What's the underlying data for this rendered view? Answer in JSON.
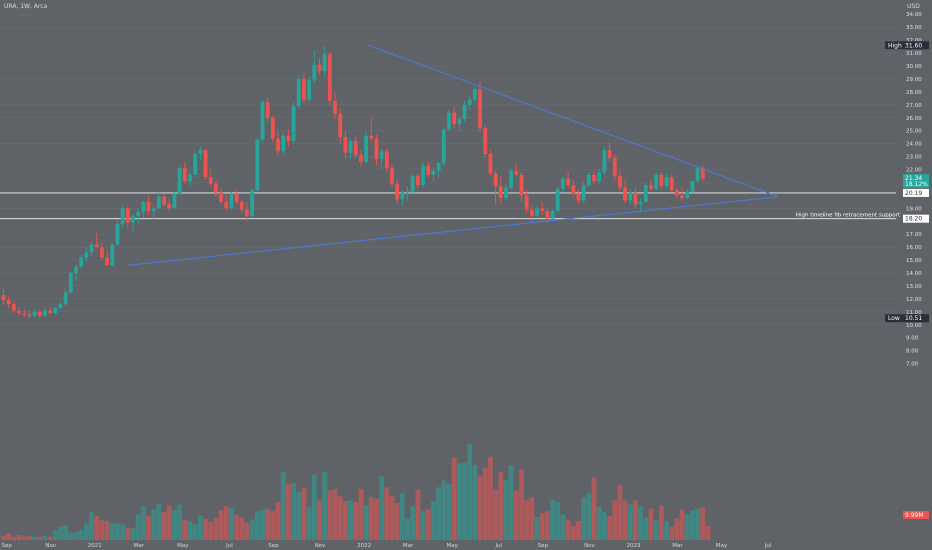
{
  "header": {
    "symbol_line": "URA, 1W, Arca",
    "currency": "USD"
  },
  "chart_data": {
    "type": "candlestick",
    "symbol": "URA",
    "timeframe": "1W",
    "exchange": "Arca",
    "currency": "USD",
    "y_axis_ticks": [
      "34.00",
      "33.00",
      "32.00",
      "31.00",
      "30.00",
      "29.00",
      "28.00",
      "27.00",
      "26.00",
      "25.00",
      "24.00",
      "23.00",
      "22.00",
      "21.00",
      "19.00",
      "17.00",
      "16.00",
      "15.00",
      "14.00",
      "13.00",
      "12.00",
      "11.00",
      "10.00",
      "9.00",
      "8.00",
      "7.00"
    ],
    "x_axis_ticks": [
      "Sep",
      "Nov",
      "2021",
      "Mar",
      "May",
      "Jul",
      "Sep",
      "Nov",
      "2022",
      "Mar",
      "May",
      "Jul",
      "Sep",
      "Nov",
      "2023",
      "Mar",
      "May",
      "Jul"
    ],
    "ylim": [
      6.6,
      35.1
    ],
    "price_labels": [
      {
        "label": "High",
        "value": "31.60"
      },
      {
        "label": "",
        "value": "21.34",
        "sub": "18.12%"
      },
      {
        "label": "",
        "value": "20.19"
      },
      {
        "label": "",
        "value": "18.20"
      },
      {
        "label": "Low",
        "value": "10.51"
      },
      {
        "label": "",
        "value": "9.99M"
      }
    ],
    "horizontal_lines": [
      {
        "value": 20.19,
        "label": ""
      },
      {
        "value": 18.2,
        "label": "High timeline fib retracement support"
      }
    ],
    "trendlines": [
      {
        "name": "upper",
        "from": [
          "2021-11",
          31.6
        ],
        "to": [
          "2023-03",
          19.9
        ]
      },
      {
        "name": "lower",
        "from": [
          "2021-02",
          14.6
        ],
        "to": [
          "2023-03",
          19.9
        ]
      }
    ],
    "candles": [
      [
        12.3,
        12.8,
        11.6,
        11.9
      ],
      [
        11.9,
        12.2,
        11.3,
        11.6
      ],
      [
        11.6,
        11.8,
        10.9,
        11.1
      ],
      [
        11.1,
        11.4,
        10.7,
        10.9
      ],
      [
        10.9,
        11.2,
        10.6,
        10.8
      ],
      [
        10.8,
        11.1,
        10.5,
        10.7
      ],
      [
        10.7,
        11.2,
        10.5,
        11.0
      ],
      [
        11.0,
        11.2,
        10.5,
        10.7
      ],
      [
        10.7,
        11.3,
        10.6,
        11.1
      ],
      [
        11.1,
        11.4,
        10.8,
        10.9
      ],
      [
        10.9,
        11.4,
        10.8,
        11.3
      ],
      [
        11.3,
        11.8,
        11.1,
        11.6
      ],
      [
        11.6,
        12.7,
        11.5,
        12.5
      ],
      [
        12.5,
        14.1,
        12.4,
        14.0
      ],
      [
        14.0,
        14.7,
        13.4,
        14.5
      ],
      [
        14.5,
        15.4,
        14.3,
        15.2
      ],
      [
        15.2,
        16.0,
        14.9,
        15.6
      ],
      [
        15.6,
        16.4,
        15.3,
        16.2
      ],
      [
        16.2,
        17.1,
        15.9,
        16.0
      ],
      [
        16.0,
        16.4,
        15.0,
        15.2
      ],
      [
        15.2,
        15.8,
        14.8,
        14.6
      ],
      [
        14.6,
        16.3,
        14.5,
        16.2
      ],
      [
        16.2,
        18.0,
        16.1,
        17.8
      ],
      [
        17.8,
        19.3,
        17.5,
        19.0
      ],
      [
        19.0,
        19.2,
        17.5,
        17.9
      ],
      [
        17.9,
        18.6,
        17.2,
        18.4
      ],
      [
        18.4,
        19.0,
        17.8,
        18.7
      ],
      [
        18.7,
        19.6,
        18.3,
        19.5
      ],
      [
        19.5,
        20.0,
        18.5,
        18.8
      ],
      [
        18.8,
        19.2,
        18.2,
        19.0
      ],
      [
        19.0,
        20.2,
        18.9,
        19.9
      ],
      [
        19.9,
        20.1,
        19.1,
        19.3
      ],
      [
        19.3,
        19.7,
        18.8,
        19.0
      ],
      [
        19.0,
        20.3,
        18.9,
        20.1
      ],
      [
        20.1,
        22.3,
        20.0,
        22.1
      ],
      [
        22.1,
        22.6,
        20.9,
        21.1
      ],
      [
        21.1,
        21.8,
        20.7,
        21.6
      ],
      [
        21.6,
        23.4,
        21.4,
        23.2
      ],
      [
        23.2,
        23.8,
        22.7,
        23.5
      ],
      [
        23.5,
        23.6,
        21.2,
        21.4
      ],
      [
        21.4,
        22.0,
        20.7,
        20.9
      ],
      [
        20.9,
        21.2,
        19.9,
        20.2
      ],
      [
        20.2,
        20.6,
        19.3,
        19.5
      ],
      [
        19.5,
        20.0,
        18.8,
        19.0
      ],
      [
        19.0,
        20.3,
        18.9,
        20.1
      ],
      [
        20.1,
        20.4,
        19.3,
        19.5
      ],
      [
        19.5,
        19.7,
        18.6,
        18.9
      ],
      [
        18.9,
        19.5,
        18.0,
        18.4
      ],
      [
        18.4,
        20.5,
        18.3,
        20.4
      ],
      [
        20.4,
        24.5,
        20.3,
        24.3
      ],
      [
        24.3,
        27.4,
        24.1,
        27.2
      ],
      [
        27.2,
        27.6,
        25.7,
        26.0
      ],
      [
        26.0,
        26.2,
        24.1,
        24.4
      ],
      [
        24.4,
        25.0,
        23.1,
        23.4
      ],
      [
        23.4,
        24.8,
        23.2,
        24.6
      ],
      [
        24.6,
        25.1,
        23.8,
        24.2
      ],
      [
        24.2,
        27.2,
        24.0,
        26.9
      ],
      [
        26.9,
        29.3,
        26.7,
        29.0
      ],
      [
        29.0,
        29.5,
        27.1,
        27.4
      ],
      [
        27.4,
        29.2,
        27.2,
        28.9
      ],
      [
        28.9,
        31.2,
        28.7,
        30.1
      ],
      [
        30.1,
        30.6,
        29.3,
        29.6
      ],
      [
        29.6,
        31.6,
        29.2,
        30.9
      ],
      [
        30.9,
        31.1,
        27.0,
        27.3
      ],
      [
        27.3,
        28.0,
        25.9,
        26.3
      ],
      [
        26.3,
        26.7,
        24.0,
        24.5
      ],
      [
        24.5,
        25.0,
        22.8,
        23.3
      ],
      [
        23.3,
        24.4,
        22.8,
        24.2
      ],
      [
        24.2,
        24.6,
        22.9,
        23.1
      ],
      [
        23.1,
        23.5,
        22.2,
        22.6
      ],
      [
        22.6,
        24.9,
        22.4,
        24.6
      ],
      [
        24.6,
        26.0,
        24.2,
        24.4
      ],
      [
        24.4,
        24.7,
        22.3,
        22.8
      ],
      [
        22.8,
        23.6,
        22.0,
        23.4
      ],
      [
        23.4,
        23.6,
        21.8,
        22.1
      ],
      [
        22.1,
        22.4,
        20.6,
        20.9
      ],
      [
        20.9,
        21.3,
        19.4,
        19.7
      ],
      [
        19.7,
        20.4,
        19.2,
        20.2
      ],
      [
        20.2,
        20.7,
        19.6,
        20.3
      ],
      [
        20.3,
        21.7,
        20.2,
        21.5
      ],
      [
        21.5,
        21.7,
        20.5,
        20.8
      ],
      [
        20.8,
        22.6,
        20.6,
        22.3
      ],
      [
        22.3,
        22.6,
        21.4,
        21.6
      ],
      [
        21.6,
        22.2,
        21.1,
        21.9
      ],
      [
        21.9,
        22.6,
        21.4,
        22.5
      ],
      [
        22.5,
        25.3,
        22.3,
        25.1
      ],
      [
        25.1,
        26.6,
        24.9,
        26.4
      ],
      [
        26.4,
        26.8,
        25.2,
        25.5
      ],
      [
        25.5,
        26.1,
        25.0,
        25.9
      ],
      [
        25.9,
        27.3,
        25.7,
        27.0
      ],
      [
        27.0,
        27.7,
        26.6,
        27.4
      ],
      [
        27.4,
        28.4,
        27.1,
        28.2
      ],
      [
        28.2,
        28.8,
        24.9,
        25.2
      ],
      [
        25.2,
        25.4,
        22.9,
        23.2
      ],
      [
        23.2,
        23.5,
        21.5,
        21.7
      ],
      [
        21.7,
        21.9,
        19.3,
        20.7
      ],
      [
        20.7,
        21.5,
        19.4,
        19.8
      ],
      [
        19.8,
        20.9,
        19.6,
        20.6
      ],
      [
        20.6,
        22.1,
        20.4,
        21.9
      ],
      [
        21.9,
        22.4,
        21.5,
        21.6
      ],
      [
        21.6,
        21.8,
        19.5,
        20.0
      ],
      [
        20.0,
        20.4,
        18.6,
        18.9
      ],
      [
        18.9,
        19.2,
        17.9,
        18.4
      ],
      [
        18.4,
        19.2,
        18.2,
        19.0
      ],
      [
        19.0,
        19.5,
        18.5,
        18.8
      ],
      [
        18.8,
        19.1,
        17.9,
        18.2
      ],
      [
        18.2,
        18.9,
        18.1,
        18.8
      ],
      [
        18.8,
        20.7,
        18.7,
        20.5
      ],
      [
        20.5,
        21.5,
        20.2,
        21.3
      ],
      [
        21.3,
        21.8,
        20.5,
        20.8
      ],
      [
        20.8,
        21.2,
        19.8,
        20.1
      ],
      [
        20.1,
        20.5,
        19.3,
        19.6
      ],
      [
        19.6,
        21.0,
        19.4,
        20.8
      ],
      [
        20.8,
        21.8,
        20.6,
        21.6
      ],
      [
        21.6,
        21.9,
        20.8,
        21.1
      ],
      [
        21.1,
        22.0,
        20.9,
        21.8
      ],
      [
        21.8,
        23.7,
        21.6,
        23.5
      ],
      [
        23.5,
        24.1,
        22.6,
        22.9
      ],
      [
        22.9,
        23.2,
        21.2,
        21.5
      ],
      [
        21.5,
        21.9,
        20.3,
        20.6
      ],
      [
        20.6,
        21.2,
        19.4,
        19.6
      ],
      [
        19.6,
        20.5,
        19.3,
        20.2
      ],
      [
        20.2,
        20.6,
        19.0,
        19.3
      ],
      [
        19.3,
        19.8,
        18.7,
        19.5
      ],
      [
        19.5,
        21.0,
        19.4,
        20.8
      ],
      [
        20.8,
        21.3,
        20.3,
        20.5
      ],
      [
        20.5,
        21.8,
        20.4,
        21.6
      ],
      [
        21.6,
        21.8,
        20.4,
        20.7
      ],
      [
        20.7,
        21.7,
        20.5,
        21.4
      ],
      [
        21.4,
        21.6,
        20.2,
        20.4
      ],
      [
        20.4,
        20.6,
        19.8,
        20.0
      ],
      [
        20.0,
        20.6,
        19.6,
        19.8
      ],
      [
        19.8,
        20.5,
        19.7,
        20.3
      ],
      [
        20.3,
        21.2,
        20.2,
        21.1
      ],
      [
        21.1,
        22.3,
        21.0,
        22.1
      ],
      [
        22.1,
        22.3,
        21.1,
        21.3
      ]
    ],
    "volume_scale_max": 17,
    "volume": [
      0.5,
      0.8,
      0.4,
      0.6,
      0.4,
      0.5,
      0.4,
      0.4,
      0.5,
      0.4,
      1.2,
      1.6,
      1.8,
      0.9,
      0.9,
      1.2,
      2.0,
      3.4,
      2.9,
      2.4,
      2.3,
      2.0,
      2.0,
      1.9,
      1.5,
      1.4,
      3.1,
      4.1,
      2.9,
      3.7,
      4.4,
      3.4,
      4.2,
      3.6,
      4.3,
      2.5,
      2.3,
      1.9,
      3.0,
      2.6,
      2.2,
      2.7,
      3.6,
      4.1,
      3.9,
      3.0,
      2.7,
      2.1,
      2.5,
      3.5,
      3.7,
      3.8,
      3.5,
      4.6,
      8.3,
      6.8,
      6.9,
      5.8,
      6.3,
      4.0,
      7.9,
      4.8,
      8.3,
      6.0,
      6.2,
      5.3,
      4.7,
      4.8,
      4.6,
      6.2,
      4.2,
      5.2,
      5.0,
      7.7,
      6.4,
      5.4,
      4.5,
      5.7,
      2.6,
      4.1,
      6.1,
      3.5,
      3.7,
      4.7,
      6.4,
      7.2,
      6.8,
      10.0,
      9.3,
      9.4,
      11.7,
      9.1,
      7.8,
      8.8,
      10.1,
      6.1,
      8.3,
      7.3,
      9.1,
      6.0,
      8.6,
      4.9,
      5.2,
      2.8,
      3.2,
      3.5,
      4.9,
      4.6,
      3.1,
      2.5,
      1.7,
      2.3,
      5.2,
      5.7,
      7.6,
      4.0,
      3.4,
      2.9,
      4.8,
      6.7,
      4.8,
      4.3,
      4.8,
      4.1,
      2.7,
      3.8,
      2.4,
      4.2,
      2.3,
      1.6,
      2.6,
      3.7,
      3.1,
      3.6,
      3.8,
      3.9,
      1.7
    ]
  }
}
